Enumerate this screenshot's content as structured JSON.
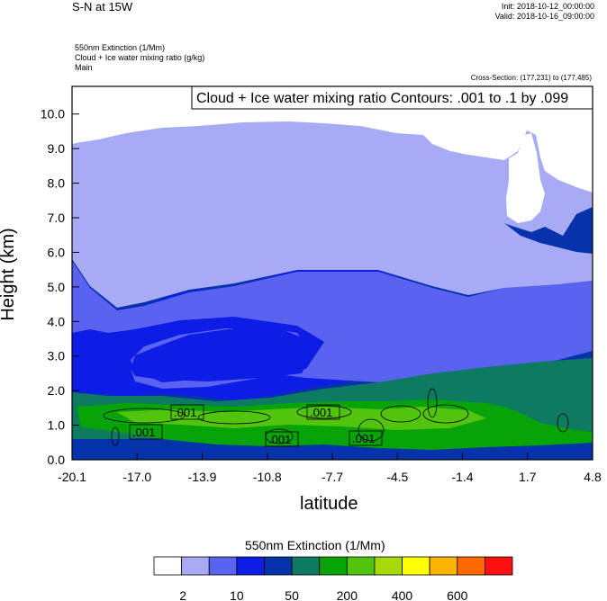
{
  "header": {
    "title": "S-N at 15W",
    "init": "Init: 2018-10-12_00:00:00",
    "valid": "Valid: 2018-10-16_09:00:00",
    "field1": "550nm Extinction   (1/Mm)",
    "field2": "Cloud + Ice water mixing ratio   (g/kg)",
    "field3": "Main",
    "cross_section": "Cross-Section: (177,231) to (177,485)"
  },
  "chart_data": {
    "type": "contour",
    "title": "S-N at 15W",
    "xlabel": "latitude",
    "ylabel": "Height (km)",
    "xlim": [
      -20.1,
      4.8
    ],
    "ylim": [
      0.0,
      10.8
    ],
    "x_ticks": [
      "-20.1",
      "-17.0",
      "-13.9",
      "-10.8",
      "-7.7",
      "-4.5",
      "-1.4",
      "1.7",
      "4.8"
    ],
    "y_ticks": [
      "0.0",
      "1.0",
      "2.0",
      "3.0",
      "4.0",
      "5.0",
      "6.0",
      "7.0",
      "8.0",
      "9.0",
      "10.0"
    ],
    "contour_info": "Cloud + Ice water mixing ratio Contours: .001 to .1 by .099",
    "contour_labels": [
      ".001",
      ".001",
      ".001",
      ".001",
      ".001"
    ],
    "colorbar": {
      "title": "550nm Extinction  (1/Mm)",
      "colors": [
        "#ffffff",
        "#a7aaf4",
        "#5a62f0",
        "#0d1de6",
        "#0633aa",
        "#0d7a62",
        "#07a307",
        "#52c40d",
        "#a6d80c",
        "#ffff00",
        "#ffb400",
        "#ff6a00",
        "#ff0f0f"
      ],
      "labels": [
        "2",
        "10",
        "50",
        "200",
        "400",
        "600"
      ]
    }
  }
}
